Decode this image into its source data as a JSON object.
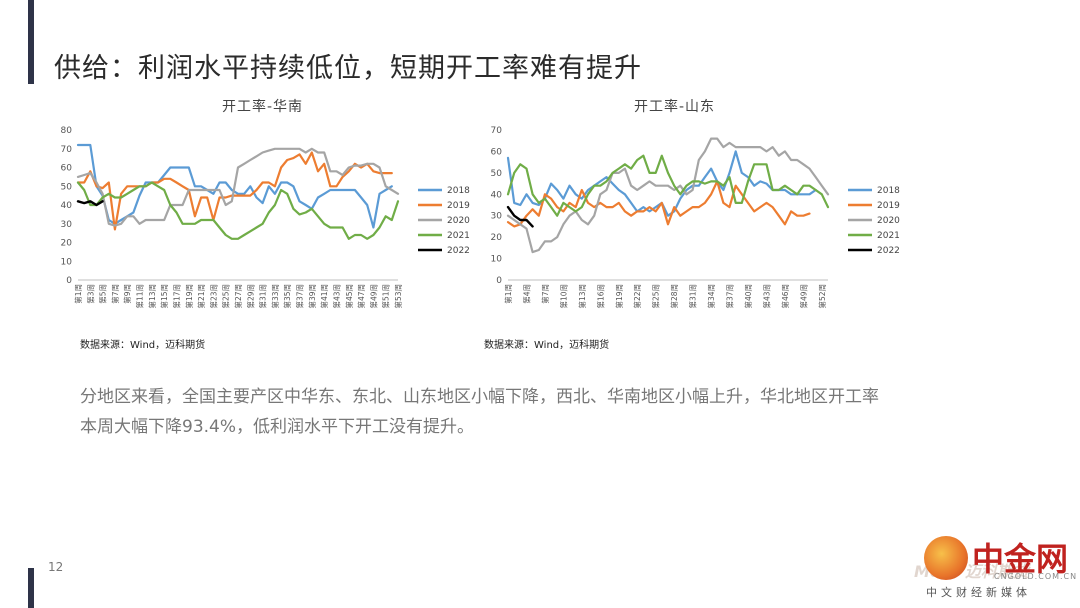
{
  "slide": {
    "title": "供给：利润水平持续低位，短期开工率难有提升",
    "body": "分地区来看，全国主要产区中华东、东北、山东地区小幅下降，西北、华南地区小幅上升，华北地区开工率本周大幅下降93.4%，低利润水平下开工没有提升。",
    "page_number": "12",
    "logo": {
      "main": "中金网",
      "domain": "CNGOLD.COM.CN",
      "sub": "中文财经新媒体",
      "faint": "Mete 迈科期货"
    }
  },
  "chart_data": [
    {
      "type": "line",
      "title": "开工率-华南",
      "source": "数据来源：Wind，迈科期货",
      "ylim": [
        0,
        80
      ],
      "yticks": [
        0,
        10,
        20,
        30,
        40,
        50,
        60,
        70,
        80
      ],
      "weeks": 53,
      "xtick_labels": [
        "第1周",
        "第3周",
        "第5周",
        "第7周",
        "第9周",
        "第11周",
        "第13周",
        "第15周",
        "第17周",
        "第19周",
        "第21周",
        "第23周",
        "第25周",
        "第27周",
        "第29周",
        "第31周",
        "第33周",
        "第35周",
        "第37周",
        "第39周",
        "第41周",
        "第43周",
        "第45周",
        "第47周",
        "第49周",
        "第51周",
        "第53周"
      ],
      "xtick_weeks": [
        1,
        3,
        5,
        7,
        9,
        11,
        13,
        15,
        17,
        19,
        21,
        23,
        25,
        27,
        29,
        31,
        33,
        35,
        37,
        39,
        41,
        43,
        45,
        47,
        49,
        51,
        53
      ],
      "legend_position": "right",
      "grid": false,
      "colors": {
        "2018": "#5b9bd5",
        "2019": "#ed7d31",
        "2020": "#a5a5a5",
        "2021": "#70ad47",
        "2022": "#000000"
      },
      "series": [
        {
          "name": "2018",
          "values": [
            72,
            72,
            72,
            50,
            45,
            32,
            30,
            32,
            34,
            36,
            45,
            52,
            52,
            52,
            56,
            60,
            60,
            60,
            60,
            50,
            50,
            48,
            46,
            52,
            52,
            48,
            46,
            46,
            50,
            44,
            41,
            50,
            46,
            52,
            52,
            50,
            42,
            40,
            38,
            44,
            46,
            48,
            48,
            48,
            48,
            48,
            44,
            40,
            28,
            46,
            48,
            50,
            null
          ]
        },
        {
          "name": "2019",
          "values": [
            52,
            52,
            58,
            50,
            49,
            52,
            27,
            46,
            50,
            50,
            50,
            50,
            52,
            52,
            54,
            54,
            52,
            50,
            48,
            34,
            44,
            44,
            32,
            44,
            44,
            45,
            45,
            45,
            45,
            48,
            52,
            52,
            50,
            60,
            64,
            65,
            67,
            62,
            68,
            58,
            62,
            50,
            50,
            55,
            58,
            62,
            60,
            62,
            58,
            57,
            57,
            57,
            null
          ]
        },
        {
          "name": "2020",
          "values": [
            55,
            56,
            57,
            52,
            46,
            30,
            29,
            30,
            34,
            34,
            30,
            32,
            32,
            32,
            32,
            40,
            40,
            40,
            48,
            48,
            48,
            48,
            48,
            48,
            40,
            42,
            60,
            62,
            64,
            66,
            68,
            69,
            70,
            70,
            70,
            70,
            70,
            68,
            70,
            68,
            68,
            58,
            58,
            56,
            60,
            61,
            61,
            62,
            62,
            60,
            50,
            48,
            46
          ]
        },
        {
          "name": "2021",
          "values": [
            52,
            48,
            40,
            40,
            44,
            46,
            44,
            44,
            46,
            48,
            50,
            50,
            52,
            50,
            48,
            40,
            36,
            30,
            30,
            30,
            32,
            32,
            32,
            28,
            24,
            22,
            22,
            24,
            26,
            28,
            30,
            36,
            40,
            48,
            46,
            38,
            35,
            36,
            38,
            34,
            30,
            28,
            28,
            28,
            22,
            24,
            24,
            22,
            24,
            28,
            34,
            32,
            42
          ]
        },
        {
          "name": "2022",
          "values": [
            42,
            41,
            42,
            40,
            42,
            null,
            null,
            null,
            null,
            null,
            null,
            null,
            null,
            null,
            null,
            null,
            null,
            null,
            null,
            null,
            null,
            null,
            null,
            null,
            null,
            null,
            null,
            null,
            null,
            null,
            null,
            null,
            null,
            null,
            null,
            null,
            null,
            null,
            null,
            null,
            null,
            null,
            null,
            null,
            null,
            null,
            null,
            null,
            null,
            null,
            null,
            null,
            null
          ]
        }
      ]
    },
    {
      "type": "line",
      "title": "开工率-山东",
      "source": "数据来源：Wind，迈科期货",
      "ylim": [
        0,
        70
      ],
      "yticks": [
        0,
        10,
        20,
        30,
        40,
        50,
        60,
        70
      ],
      "weeks": 53,
      "xtick_labels": [
        "第1周",
        "第4周",
        "第7周",
        "第10周",
        "第13周",
        "第16周",
        "第19周",
        "第22周",
        "第25周",
        "第28周",
        "第31周",
        "第34周",
        "第37周",
        "第40周",
        "第43周",
        "第46周",
        "第49周",
        "第52周"
      ],
      "xtick_weeks": [
        1,
        4,
        7,
        10,
        13,
        16,
        19,
        22,
        25,
        28,
        31,
        34,
        37,
        40,
        43,
        46,
        49,
        52
      ],
      "legend_position": "right",
      "grid": false,
      "colors": {
        "2018": "#5b9bd5",
        "2019": "#ed7d31",
        "2020": "#a5a5a5",
        "2021": "#70ad47",
        "2022": "#000000"
      },
      "series": [
        {
          "name": "2018",
          "values": [
            57,
            36,
            35,
            40,
            36,
            35,
            38,
            45,
            42,
            38,
            44,
            40,
            38,
            42,
            44,
            46,
            48,
            45,
            42,
            40,
            36,
            32,
            34,
            32,
            34,
            36,
            30,
            32,
            38,
            42,
            44,
            44,
            48,
            52,
            46,
            42,
            50,
            60,
            50,
            48,
            44,
            46,
            45,
            42,
            42,
            42,
            40,
            40,
            40,
            40,
            42,
            null,
            null
          ]
        },
        {
          "name": "2019",
          "values": [
            27,
            25,
            26,
            30,
            33,
            30,
            40,
            38,
            34,
            32,
            36,
            34,
            42,
            36,
            34,
            36,
            34,
            34,
            36,
            32,
            30,
            32,
            32,
            34,
            32,
            36,
            26,
            34,
            30,
            32,
            34,
            34,
            36,
            40,
            46,
            36,
            34,
            44,
            40,
            36,
            32,
            34,
            36,
            34,
            30,
            26,
            32,
            30,
            30,
            31,
            null,
            null,
            null
          ]
        },
        {
          "name": "2020",
          "values": [
            30,
            28,
            26,
            24,
            13,
            14,
            18,
            18,
            20,
            26,
            30,
            32,
            28,
            26,
            30,
            40,
            42,
            50,
            50,
            52,
            44,
            42,
            44,
            46,
            44,
            44,
            44,
            42,
            44,
            40,
            42,
            56,
            60,
            66,
            66,
            62,
            64,
            62,
            62,
            62,
            62,
            62,
            60,
            62,
            58,
            60,
            56,
            56,
            54,
            52,
            48,
            44,
            40
          ]
        },
        {
          "name": "2021",
          "values": [
            40,
            50,
            54,
            52,
            40,
            36,
            38,
            34,
            30,
            36,
            34,
            32,
            34,
            40,
            44,
            44,
            46,
            50,
            52,
            54,
            52,
            56,
            58,
            50,
            50,
            58,
            50,
            44,
            40,
            44,
            46,
            46,
            45,
            46,
            46,
            44,
            48,
            36,
            36,
            46,
            54,
            54,
            54,
            42,
            42,
            44,
            42,
            40,
            44,
            44,
            42,
            40,
            34
          ]
        },
        {
          "name": "2022",
          "values": [
            34,
            30,
            28,
            28,
            25,
            null,
            null,
            null,
            null,
            null,
            null,
            null,
            null,
            null,
            null,
            null,
            null,
            null,
            null,
            null,
            null,
            null,
            null,
            null,
            null,
            null,
            null,
            null,
            null,
            null,
            null,
            null,
            null,
            null,
            null,
            null,
            null,
            null,
            null,
            null,
            null,
            null,
            null,
            null,
            null,
            null,
            null,
            null,
            null,
            null,
            null,
            null,
            null
          ]
        }
      ]
    }
  ]
}
